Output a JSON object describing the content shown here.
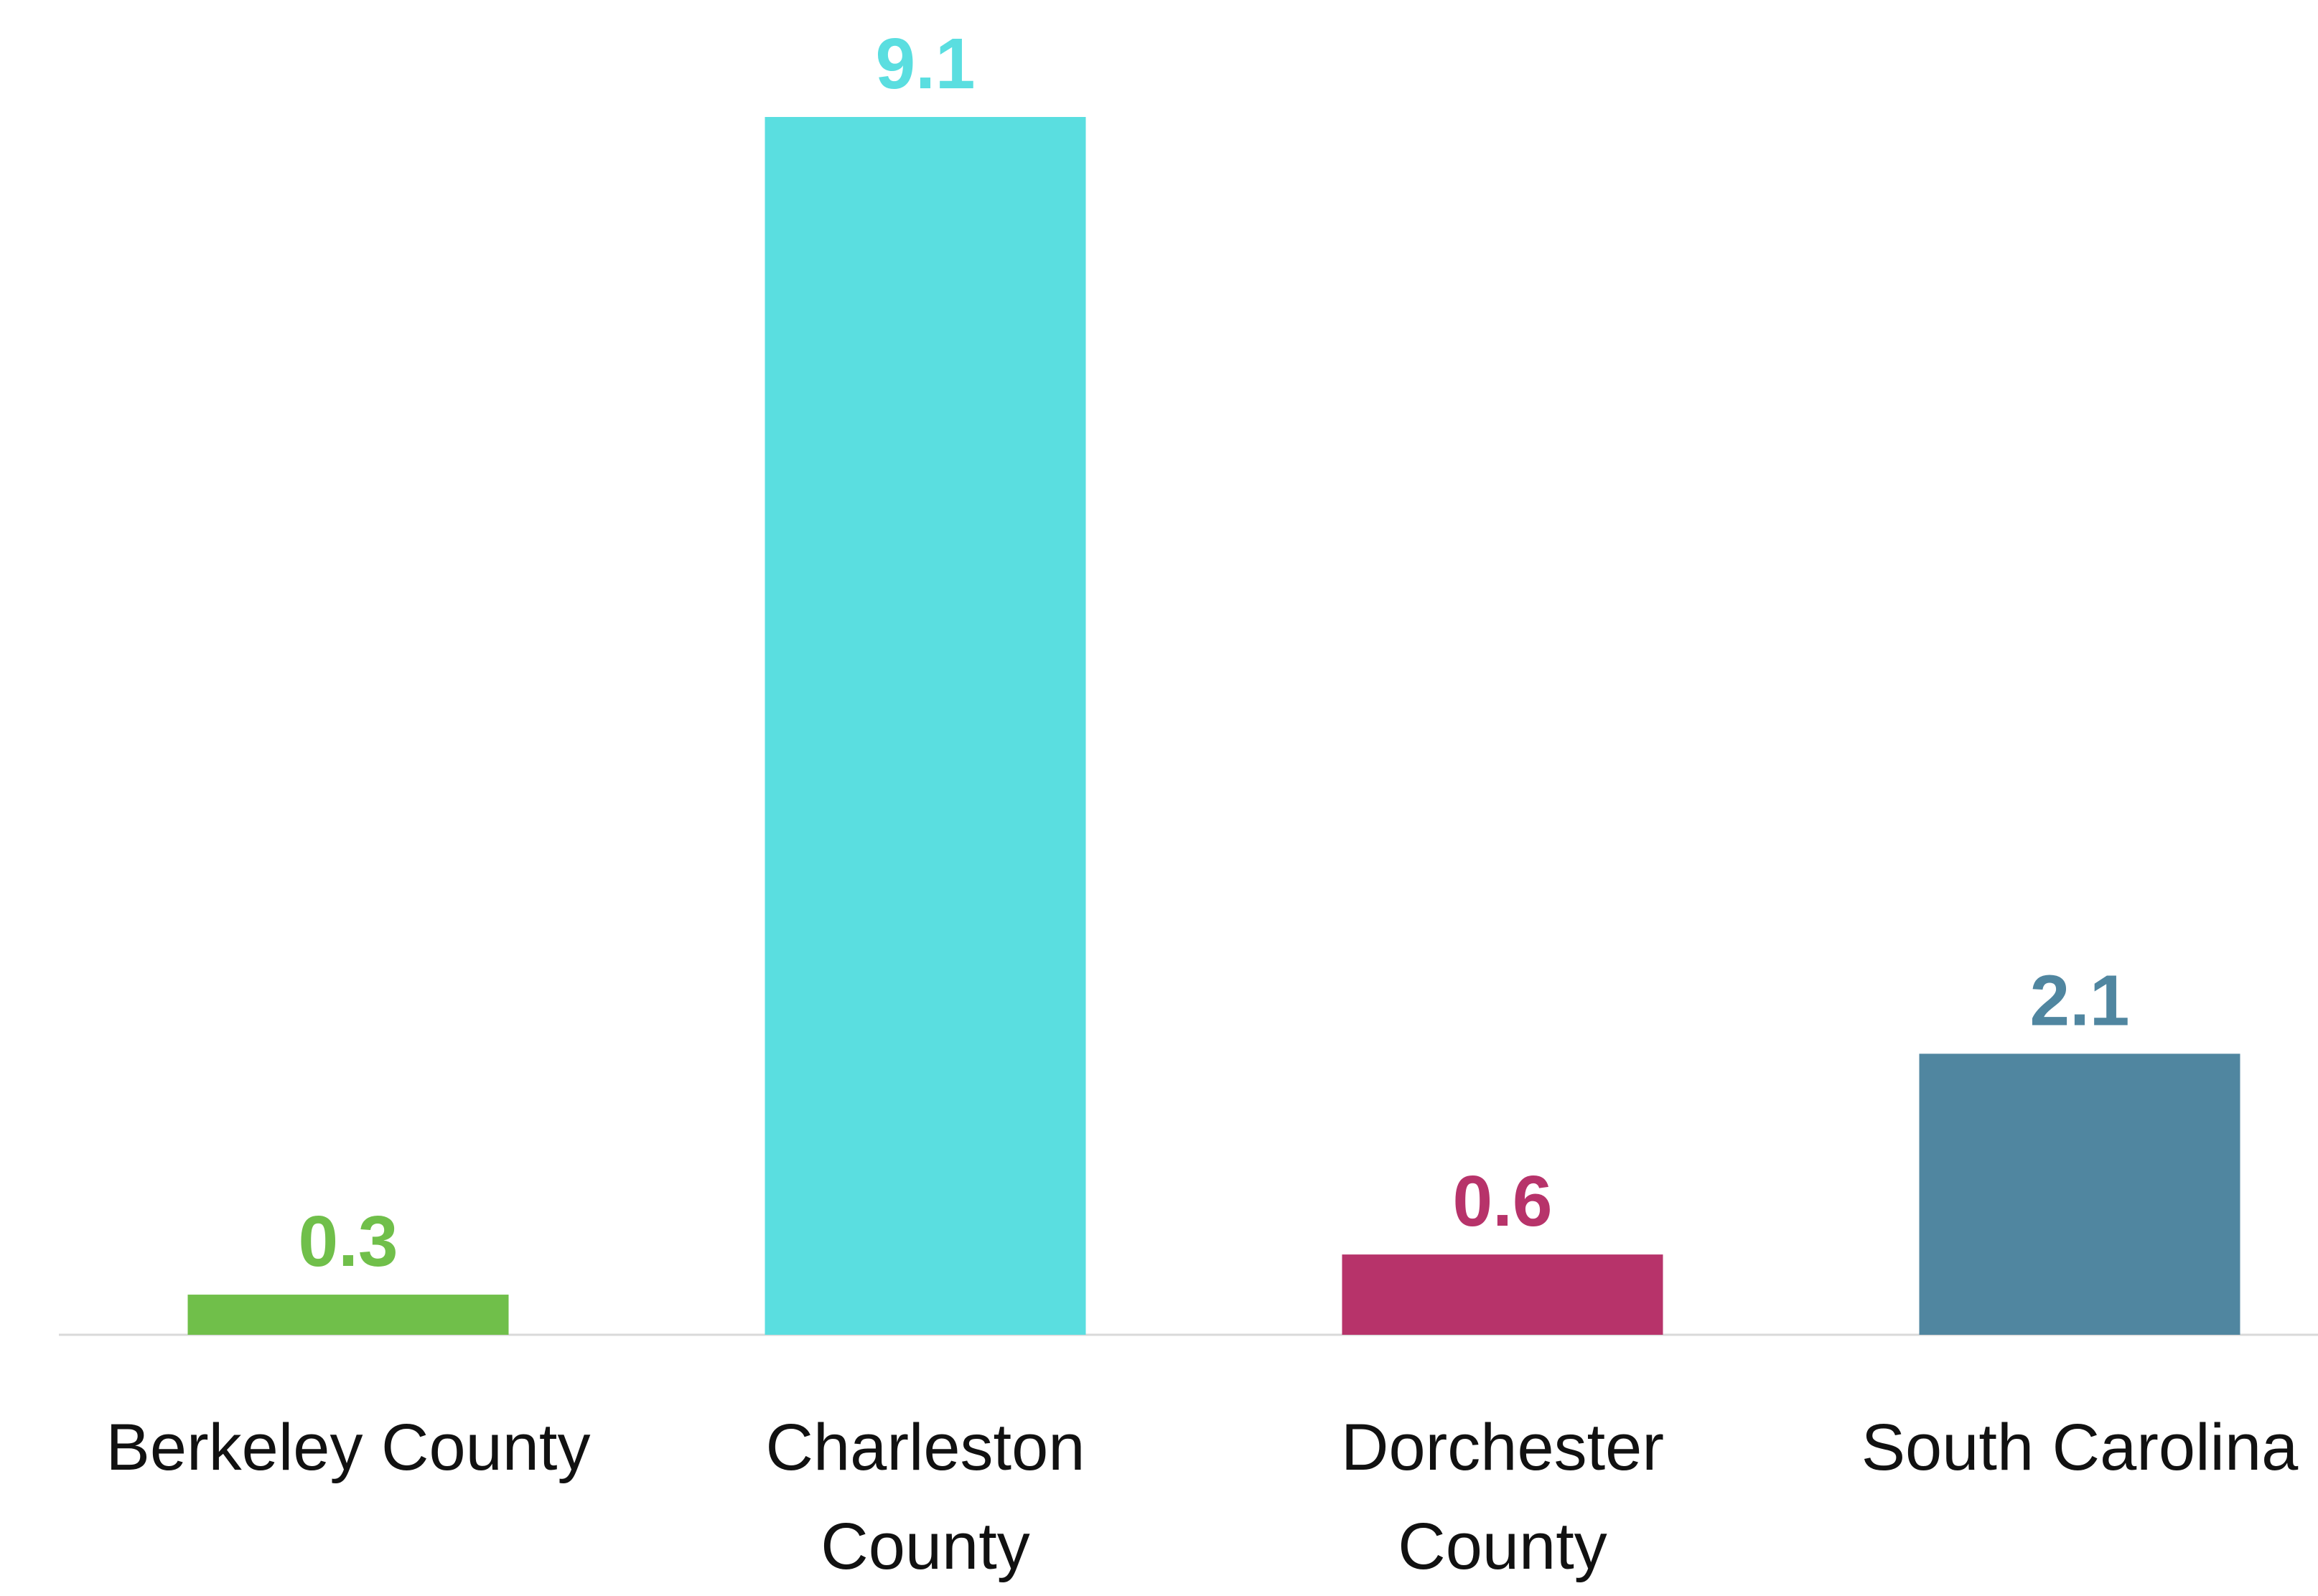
{
  "chart_data": {
    "type": "bar",
    "categories": [
      "Berkeley County",
      "Charleston County",
      "Dorchester County",
      "South Carolina"
    ],
    "values": [
      0.3,
      9.1,
      0.6,
      2.1
    ],
    "colors": [
      "#70bf4a",
      "#5adee0",
      "#b7336a",
      "#5086a0"
    ]
  }
}
